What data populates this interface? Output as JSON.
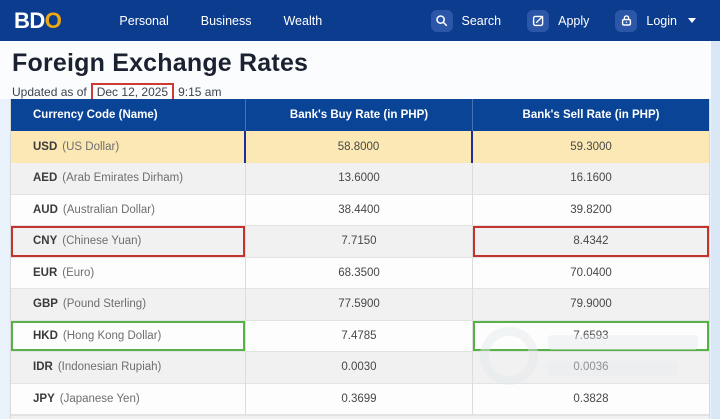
{
  "nav": {
    "logo": {
      "part1": "BD",
      "part2": "O"
    },
    "items": [
      {
        "label": "Personal"
      },
      {
        "label": "Business"
      },
      {
        "label": "Wealth"
      }
    ],
    "actions": [
      {
        "label": "Search",
        "icon": "search-icon"
      },
      {
        "label": "Apply",
        "icon": "edit-icon"
      },
      {
        "label": "Login",
        "icon": "lock-icon",
        "has_caret": true
      }
    ]
  },
  "page": {
    "title": "Foreign Exchange Rates",
    "updated_prefix": "Updated as of",
    "updated_date": "Dec 12, 2025",
    "updated_time": "9:15 am"
  },
  "table": {
    "headers": [
      "Currency Code (Name)",
      "Bank's Buy Rate (in PHP)",
      "Bank's Sell Rate (in PHP)"
    ],
    "rows": [
      {
        "code": "USD",
        "name": "(US Dollar)",
        "buy": "58.8000",
        "sell": "59.3000",
        "highlight": "usd"
      },
      {
        "code": "AED",
        "name": "(Arab Emirates Dirham)",
        "buy": "13.6000",
        "sell": "16.1600"
      },
      {
        "code": "AUD",
        "name": "(Australian Dollar)",
        "buy": "38.4400",
        "sell": "39.8200"
      },
      {
        "code": "CNY",
        "name": "(Chinese Yuan)",
        "buy": "7.7150",
        "sell": "8.4342",
        "annotate": "red"
      },
      {
        "code": "EUR",
        "name": "(Euro)",
        "buy": "68.3500",
        "sell": "70.0400"
      },
      {
        "code": "GBP",
        "name": "(Pound Sterling)",
        "buy": "77.5900",
        "sell": "79.9000"
      },
      {
        "code": "HKD",
        "name": "(Hong Kong Dollar)",
        "buy": "7.4785",
        "sell": "7.6593",
        "annotate": "green"
      },
      {
        "code": "IDR",
        "name": "(Indonesian Rupiah)",
        "buy": "0.0030",
        "sell": "0.0036"
      },
      {
        "code": "JPY",
        "name": "(Japanese Yen)",
        "buy": "0.3699",
        "sell": "0.3828"
      }
    ]
  },
  "colors": {
    "navbar_blue": "#0c3c8e",
    "table_header_blue": "#0a4496",
    "usd_highlight_yellow": "#fbe8b4",
    "annotation_blue": "#1e2d9e",
    "annotation_red": "#c2342c",
    "annotation_green": "#56b146",
    "logo_gold": "#eaa812"
  }
}
